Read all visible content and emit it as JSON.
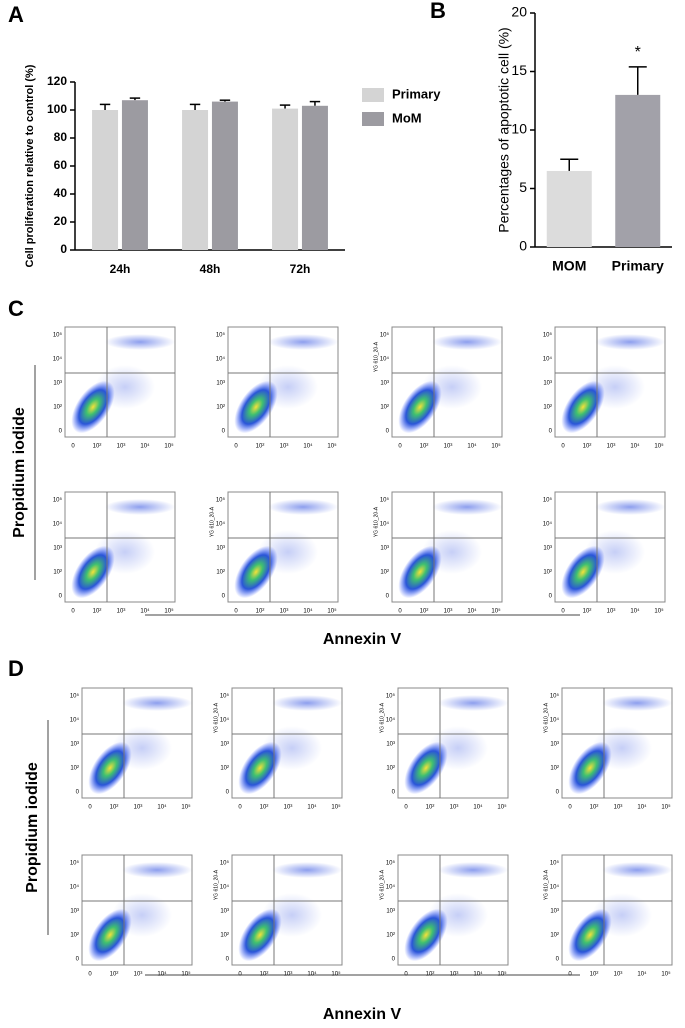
{
  "chart_data": [
    {
      "type": "bar",
      "panel_label": "A",
      "ylabel": "Cell proliferation relative to control (%)",
      "categories": [
        "24h",
        "48h",
        "72h"
      ],
      "series": [
        {
          "name": "Primary",
          "color": "#d4d4d4",
          "values": [
            100,
            100,
            101
          ],
          "errors": [
            4,
            4,
            2.5
          ]
        },
        {
          "name": "MoM",
          "color": "#9c9ba1",
          "values": [
            107,
            106,
            103
          ],
          "errors": [
            1.5,
            1,
            3
          ]
        }
      ],
      "ylim": [
        0,
        120
      ],
      "yticks": [
        0,
        20,
        40,
        60,
        80,
        100,
        120
      ],
      "legend": "right"
    },
    {
      "type": "bar",
      "panel_label": "B",
      "ylabel": "Percentages of apoptotic cell (%)",
      "categories": [
        "MOM",
        "Primary"
      ],
      "values": [
        6.5,
        13
      ],
      "errors": [
        1,
        2.4
      ],
      "colors": [
        "#dcdcdc",
        "#a2a1a9"
      ],
      "annotations": [
        null,
        "*"
      ],
      "ylim": [
        0,
        20
      ],
      "yticks": [
        0,
        5,
        10,
        15,
        20
      ]
    }
  ],
  "flow_axis": {
    "xticks": [
      "0",
      "10²",
      "10³",
      "10⁴",
      "10⁵"
    ],
    "yticks": [
      "10⁵",
      "10⁴",
      "10³",
      "10²",
      "0"
    ]
  },
  "flow_panels": [
    {
      "label": "C",
      "y_title": "Propidium iodide",
      "x_title": "Annexin V",
      "plot_y_labels": [
        null,
        null,
        "YG 610_20-A",
        null,
        null,
        "YG 610_20-A",
        "YG 610_20-A",
        null
      ]
    },
    {
      "label": "D",
      "y_title": "Propidium iodide",
      "x_title": "Annexin V",
      "plot_y_labels": [
        null,
        "YG 610_20-A",
        "YG 610_20-A",
        "YG 610_20-A",
        null,
        "YG 610_20-A",
        "YG 610_20-A",
        "YG 610_20-A"
      ]
    }
  ]
}
